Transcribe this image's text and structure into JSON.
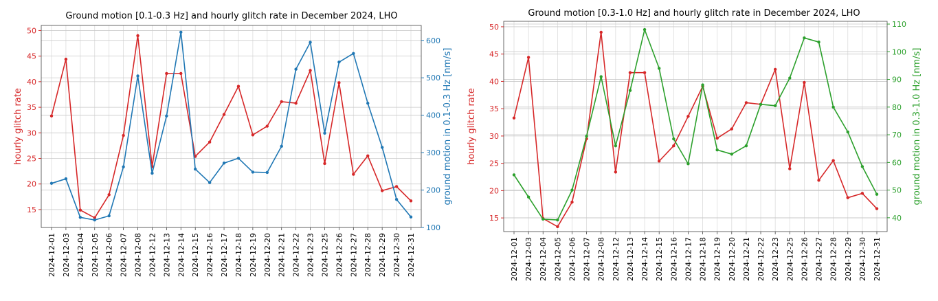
{
  "chart_data": [
    {
      "type": "line",
      "title": "Ground motion [0.1-0.3 Hz] and hourly glitch rate in December 2024, LHO",
      "xlabel": "",
      "ylabel_left": "hourly glitch rate",
      "ylabel_right": "ground motion in 0.1-0.3 Hz [nm/s]",
      "categories": [
        "2024-12-01",
        "2024-12-03",
        "2024-12-04",
        "2024-12-05",
        "2024-12-06",
        "2024-12-07",
        "2024-12-08",
        "2024-12-12",
        "2024-12-13",
        "2024-12-14",
        "2024-12-15",
        "2024-12-16",
        "2024-12-17",
        "2024-12-18",
        "2024-12-19",
        "2024-12-20",
        "2024-12-21",
        "2024-12-22",
        "2024-12-23",
        "2024-12-25",
        "2024-12-26",
        "2024-12-27",
        "2024-12-28",
        "2024-12-29",
        "2024-12-30",
        "2024-12-31"
      ],
      "ylim_left": [
        11.5,
        51
      ],
      "yticks_left": [
        15,
        20,
        25,
        30,
        35,
        40,
        45,
        50
      ],
      "ylim_right": [
        100,
        640
      ],
      "yticks_right": [
        100,
        200,
        300,
        400,
        500,
        600
      ],
      "colors": {
        "left": "#d62728",
        "right": "#1f77b4"
      },
      "grid": true,
      "series": [
        {
          "axis": "left",
          "color": "#d62728",
          "values": [
            33.3,
            44.4,
            14.9,
            13.4,
            17.9,
            29.5,
            49.0,
            23.4,
            41.6,
            41.6,
            25.4,
            28.2,
            33.6,
            39.1,
            29.6,
            31.3,
            36.1,
            35.8,
            42.2,
            24.0,
            39.8,
            21.9,
            25.5,
            18.7,
            19.5,
            16.7
          ]
        },
        {
          "axis": "right",
          "color": "#1f77b4",
          "values": [
            218,
            230,
            127,
            120,
            131,
            262,
            505,
            245,
            398,
            622,
            256,
            220,
            272,
            285,
            248,
            247,
            317,
            523,
            595,
            352,
            542,
            565,
            432,
            314,
            175,
            128
          ]
        }
      ]
    },
    {
      "type": "line",
      "title": "Ground motion [0.3-1.0 Hz] and hourly glitch rate in December 2024, LHO",
      "xlabel": "",
      "ylabel_left": "hourly glitch rate",
      "ylabel_right": "ground motion in 0.3-1.0 Hz [nm/s]",
      "categories": [
        "2024-12-01",
        "2024-12-03",
        "2024-12-04",
        "2024-12-05",
        "2024-12-06",
        "2024-12-07",
        "2024-12-08",
        "2024-12-12",
        "2024-12-13",
        "2024-12-14",
        "2024-12-15",
        "2024-12-16",
        "2024-12-17",
        "2024-12-18",
        "2024-12-19",
        "2024-12-20",
        "2024-12-21",
        "2024-12-22",
        "2024-12-23",
        "2024-12-25",
        "2024-12-26",
        "2024-12-27",
        "2024-12-28",
        "2024-12-29",
        "2024-12-30",
        "2024-12-31"
      ],
      "ylim_left": [
        12.5,
        51
      ],
      "yticks_left": [
        15,
        20,
        25,
        30,
        35,
        40,
        45,
        50
      ],
      "ylim_right": [
        35,
        111
      ],
      "yticks_right": [
        40,
        50,
        60,
        70,
        80,
        90,
        100,
        110
      ],
      "colors": {
        "left": "#d62728",
        "right": "#2ca02c"
      },
      "grid": true,
      "series": [
        {
          "axis": "left",
          "color": "#d62728",
          "values": [
            33.3,
            44.4,
            14.9,
            13.4,
            17.9,
            29.5,
            49.0,
            23.4,
            41.6,
            41.6,
            25.4,
            28.2,
            33.6,
            39.1,
            29.6,
            31.3,
            36.1,
            35.8,
            42.2,
            24.0,
            39.8,
            21.9,
            25.5,
            18.7,
            19.5,
            16.7
          ]
        },
        {
          "axis": "right",
          "color": "#2ca02c",
          "values": [
            55.5,
            47.5,
            39.5,
            39.2,
            50.0,
            69.5,
            91.0,
            66.0,
            86.0,
            108.0,
            94.0,
            68.5,
            59.5,
            88.0,
            64.5,
            63.0,
            66.0,
            81.0,
            80.5,
            90.5,
            105.0,
            103.5,
            80.0,
            71.0,
            58.5,
            48.5
          ]
        }
      ]
    }
  ]
}
